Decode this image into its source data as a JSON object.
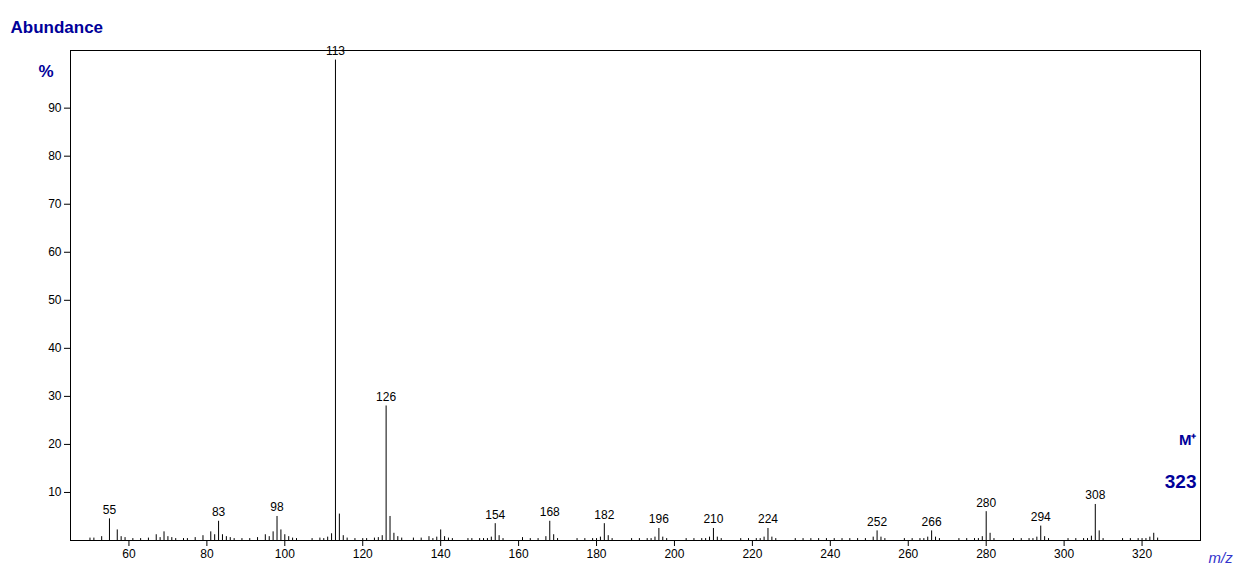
{
  "chart_data": {
    "type": "stem",
    "xlabel": "m/z",
    "ylabel": "Abundance",
    "annotations": [
      "%",
      "M⁺",
      "323"
    ],
    "color": "#000000",
    "x": [
      50,
      51,
      53,
      55,
      57,
      58,
      59,
      61,
      63,
      65,
      67,
      68,
      69,
      70,
      71,
      72,
      74,
      75,
      77,
      79,
      81,
      82,
      83,
      84,
      85,
      86,
      87,
      89,
      91,
      93,
      95,
      96,
      97,
      98,
      99,
      100,
      101,
      102,
      103,
      107,
      109,
      110,
      111,
      112,
      113,
      114,
      115,
      116,
      118,
      120,
      121,
      123,
      124,
      125,
      126,
      127,
      128,
      129,
      130,
      133,
      135,
      137,
      138,
      139,
      140,
      141,
      142,
      143,
      147,
      148,
      150,
      151,
      152,
      153,
      154,
      155,
      156,
      161,
      163,
      165,
      167,
      168,
      169,
      170,
      175,
      177,
      179,
      180,
      181,
      182,
      183,
      184,
      189,
      191,
      193,
      194,
      195,
      196,
      197,
      198,
      203,
      205,
      207,
      208,
      209,
      210,
      211,
      212,
      217,
      219,
      221,
      222,
      223,
      224,
      225,
      226,
      231,
      233,
      235,
      237,
      239,
      241,
      243,
      245,
      247,
      249,
      251,
      252,
      253,
      254,
      259,
      261,
      263,
      264,
      265,
      266,
      267,
      268,
      273,
      275,
      277,
      278,
      279,
      280,
      281,
      282,
      287,
      289,
      291,
      292,
      293,
      294,
      295,
      296,
      301,
      303,
      305,
      306,
      307,
      308,
      309,
      310,
      315,
      317,
      319,
      320,
      321,
      322,
      323,
      324
    ],
    "values": [
      0.5,
      0.5,
      0.8,
      4.5,
      2.2,
      0.8,
      0.6,
      0.4,
      0.4,
      0.5,
      1.2,
      0.6,
      1.8,
      0.8,
      0.6,
      0.4,
      0.4,
      0.4,
      0.6,
      1.0,
      1.8,
      1.2,
      4.0,
      1.2,
      0.8,
      0.6,
      0.4,
      0.4,
      0.4,
      0.6,
      1.2,
      0.8,
      1.8,
      5.0,
      2.2,
      1.2,
      0.8,
      0.5,
      0.4,
      0.4,
      0.5,
      0.4,
      0.7,
      1.4,
      100.0,
      5.5,
      1.0,
      0.5,
      0.4,
      0.4,
      0.4,
      0.5,
      0.6,
      1.0,
      28.0,
      5.0,
      1.5,
      0.8,
      0.5,
      0.5,
      0.5,
      0.8,
      0.4,
      0.7,
      2.2,
      0.8,
      0.5,
      0.4,
      0.4,
      0.4,
      0.4,
      0.4,
      0.4,
      0.7,
      3.5,
      1.0,
      0.4,
      0.6,
      0.4,
      0.4,
      0.8,
      4.0,
      1.2,
      0.4,
      0.4,
      0.4,
      0.4,
      0.4,
      0.7,
      3.5,
      1.0,
      0.4,
      0.4,
      0.4,
      0.4,
      0.4,
      0.7,
      2.5,
      0.7,
      0.4,
      0.4,
      0.4,
      0.4,
      0.4,
      0.7,
      2.5,
      0.7,
      0.4,
      0.4,
      0.4,
      0.4,
      0.4,
      0.7,
      2.5,
      0.7,
      0.4,
      0.4,
      0.4,
      0.4,
      0.4,
      0.4,
      0.4,
      0.4,
      0.4,
      0.4,
      0.4,
      0.7,
      2.0,
      0.7,
      0.4,
      0.4,
      0.4,
      0.4,
      0.4,
      0.7,
      2.0,
      0.7,
      0.4,
      0.4,
      0.4,
      0.4,
      0.4,
      0.8,
      6.0,
      1.5,
      0.4,
      0.4,
      0.4,
      0.4,
      0.4,
      0.7,
      3.0,
      0.8,
      0.4,
      0.4,
      0.4,
      0.4,
      0.4,
      0.9,
      7.5,
      2.0,
      0.4,
      0.4,
      0.4,
      0.4,
      0.4,
      0.4,
      0.7,
      1.5,
      0.5
    ],
    "labeled_peaks": [
      55,
      83,
      98,
      113,
      126,
      154,
      168,
      182,
      196,
      210,
      224,
      252,
      266,
      280,
      294,
      308
    ],
    "xlim": [
      45,
      335
    ],
    "ylim": [
      0,
      102
    ],
    "xticks": [
      60,
      80,
      100,
      120,
      140,
      160,
      180,
      200,
      220,
      240,
      260,
      280,
      300,
      320
    ],
    "yticks": [
      10,
      20,
      30,
      40,
      50,
      60,
      70,
      80,
      90
    ],
    "grid": false
  }
}
